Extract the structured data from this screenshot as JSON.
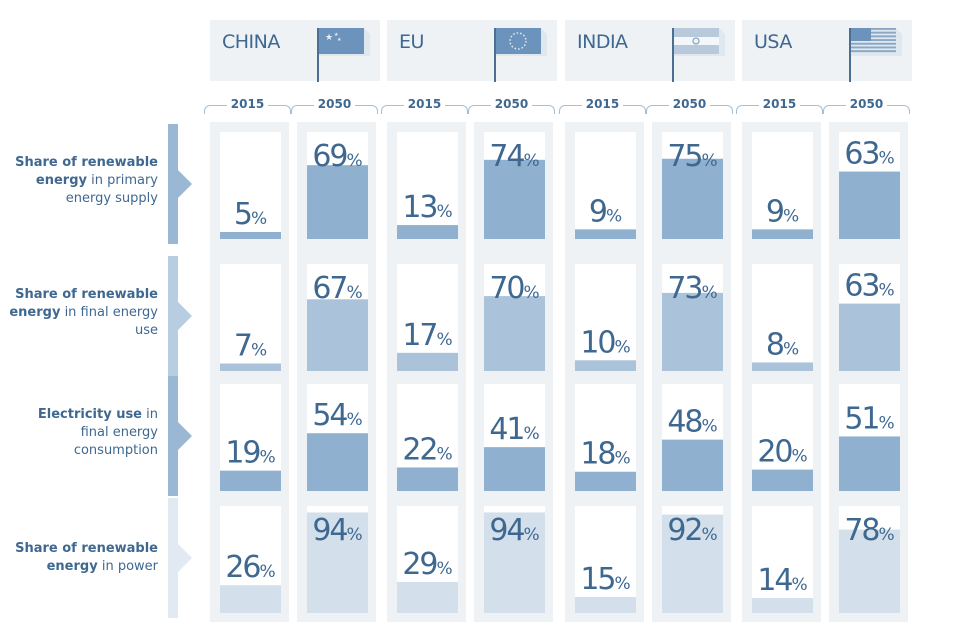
{
  "chart_data": {
    "type": "bar",
    "title": "",
    "countries": [
      {
        "name": "CHINA",
        "flag": "china-flag-icon"
      },
      {
        "name": "EU",
        "flag": "eu-flag-icon"
      },
      {
        "name": "INDIA",
        "flag": "india-flag-icon"
      },
      {
        "name": "USA",
        "flag": "usa-flag-icon"
      }
    ],
    "years": [
      "2015",
      "2050"
    ],
    "unit": "%",
    "indicators": [
      {
        "label_bold": "Share of renewable energy",
        "label_rest": " in primary energy supply",
        "values": {
          "CHINA": [
            5,
            69
          ],
          "EU": [
            13,
            74
          ],
          "INDIA": [
            9,
            75
          ],
          "USA": [
            9,
            63
          ]
        }
      },
      {
        "label_bold": "Share of renewable energy",
        "label_rest": " in final energy use",
        "values": {
          "CHINA": [
            7,
            67
          ],
          "EU": [
            17,
            70
          ],
          "INDIA": [
            10,
            73
          ],
          "USA": [
            8,
            63
          ]
        }
      },
      {
        "label_bold": "Electricity use",
        "label_rest": " in final energy consumption",
        "values": {
          "CHINA": [
            19,
            54
          ],
          "EU": [
            22,
            41
          ],
          "INDIA": [
            18,
            48
          ],
          "USA": [
            20,
            51
          ]
        }
      },
      {
        "label_bold": "Share of renewable energy",
        "label_rest": " in power",
        "values": {
          "CHINA": [
            26,
            94
          ],
          "EU": [
            29,
            94
          ],
          "INDIA": [
            15,
            92
          ],
          "USA": [
            14,
            78
          ]
        }
      }
    ],
    "ylim": [
      0,
      100
    ],
    "colors": {
      "row_fills": [
        "#8fb0cf",
        "#aac2da",
        "#8fb0cf",
        "#d3e0ec"
      ],
      "row_markers": [
        "#9ab8d3",
        "#b7cde1",
        "#9ab8d3",
        "#e1eaf2"
      ],
      "panel_bg": "#eef2f5",
      "value_text": "#3f6891"
    }
  }
}
